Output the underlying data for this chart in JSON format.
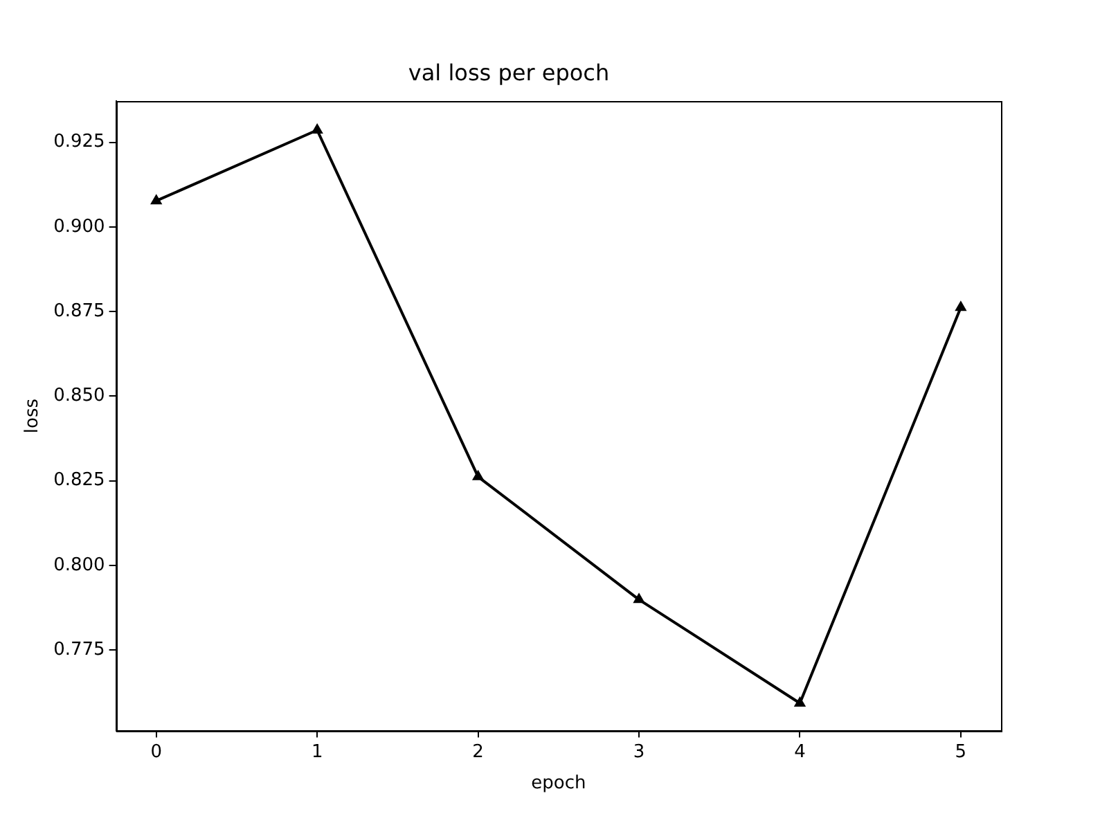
{
  "chart_data": {
    "type": "line",
    "title": "val loss per epoch",
    "xlabel": "epoch",
    "ylabel": "loss",
    "x": [
      0,
      1,
      2,
      3,
      4,
      5
    ],
    "series": [
      {
        "color": "#000000",
        "values": [
          0.9077,
          0.9286,
          0.8262,
          0.7899,
          0.7593,
          0.8762
        ]
      }
    ],
    "xlim": [
      -0.25,
      5.25
    ],
    "xticks": [
      0,
      1,
      2,
      3,
      4,
      5
    ],
    "ylim": [
      0.7512,
      0.9371
    ],
    "yticks": [
      0.775,
      {
        "value": 0.8,
        "label": "0.800"
      },
      0.825,
      {
        "value": 0.85,
        "label": "0.850"
      },
      0.875,
      {
        "value": 0.9,
        "label": "0.900"
      },
      0.925
    ],
    "marker": "triangle",
    "line_style": "solid",
    "grid": false,
    "legend": false
  }
}
